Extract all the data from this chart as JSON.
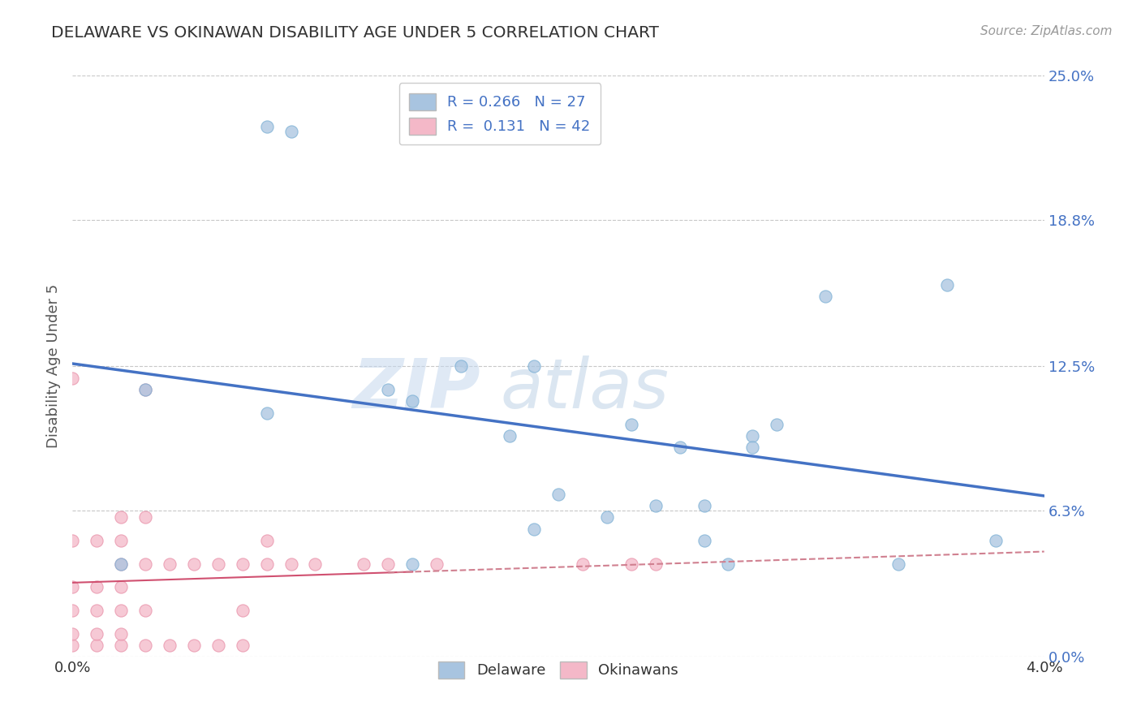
{
  "title": "DELAWARE VS OKINAWAN DISABILITY AGE UNDER 5 CORRELATION CHART",
  "source_text": "Source: ZipAtlas.com",
  "ylabel": "Disability Age Under 5",
  "xlim": [
    0.0,
    0.04
  ],
  "ylim": [
    0.0,
    0.25
  ],
  "xtick_labels": [
    "0.0%",
    "4.0%"
  ],
  "ytick_labels": [
    "0.0%",
    "6.3%",
    "12.5%",
    "18.8%",
    "25.0%"
  ],
  "ytick_values": [
    0.0,
    0.063,
    0.125,
    0.188,
    0.25
  ],
  "legend_R_delaware": "0.266",
  "legend_N_delaware": "27",
  "legend_R_okinawan": "0.131",
  "legend_N_okinawan": "42",
  "delaware_color": "#a8c4e0",
  "delaware_edge_color": "#7aafd4",
  "okinawan_color": "#f4b8c8",
  "okinawan_edge_color": "#e890a8",
  "delaware_line_color": "#4472c4",
  "okinawan_line_color": "#d05070",
  "okinawan_dash_color": "#d08090",
  "watermark_zip": "ZIP",
  "watermark_atlas": "atlas",
  "background_color": "#ffffff",
  "grid_color": "#c8c8c8",
  "delaware_x": [
    0.008,
    0.009,
    0.003,
    0.008,
    0.016,
    0.019,
    0.014,
    0.023,
    0.019,
    0.022,
    0.024,
    0.026,
    0.025,
    0.028,
    0.027,
    0.028,
    0.029,
    0.02,
    0.026,
    0.031,
    0.034,
    0.036,
    0.038,
    0.013,
    0.014,
    0.002,
    0.018
  ],
  "delaware_y": [
    0.228,
    0.226,
    0.115,
    0.105,
    0.125,
    0.125,
    0.11,
    0.1,
    0.055,
    0.06,
    0.065,
    0.065,
    0.09,
    0.095,
    0.04,
    0.09,
    0.1,
    0.07,
    0.05,
    0.155,
    0.04,
    0.16,
    0.05,
    0.115,
    0.04,
    0.04,
    0.095
  ],
  "okinawan_x": [
    0.0,
    0.0,
    0.0,
    0.0,
    0.0,
    0.0,
    0.001,
    0.001,
    0.001,
    0.001,
    0.001,
    0.002,
    0.002,
    0.002,
    0.002,
    0.002,
    0.002,
    0.002,
    0.003,
    0.003,
    0.003,
    0.003,
    0.004,
    0.004,
    0.005,
    0.005,
    0.006,
    0.006,
    0.007,
    0.007,
    0.007,
    0.008,
    0.008,
    0.009,
    0.01,
    0.012,
    0.013,
    0.015,
    0.021,
    0.023,
    0.024,
    0.003
  ],
  "okinawan_y": [
    0.005,
    0.01,
    0.02,
    0.03,
    0.05,
    0.12,
    0.005,
    0.01,
    0.02,
    0.03,
    0.05,
    0.005,
    0.01,
    0.02,
    0.03,
    0.04,
    0.05,
    0.06,
    0.005,
    0.02,
    0.04,
    0.06,
    0.005,
    0.04,
    0.005,
    0.04,
    0.005,
    0.04,
    0.005,
    0.02,
    0.04,
    0.04,
    0.05,
    0.04,
    0.04,
    0.04,
    0.04,
    0.04,
    0.04,
    0.04,
    0.04,
    0.115
  ]
}
